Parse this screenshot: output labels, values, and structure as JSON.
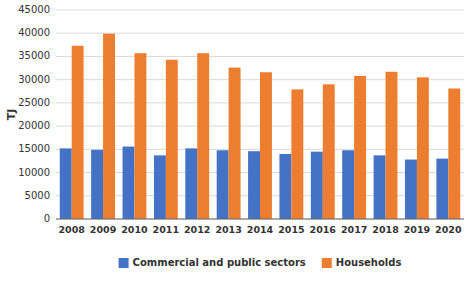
{
  "chart_data": {
    "type": "bar",
    "categories": [
      "2008",
      "2009",
      "2010",
      "2011",
      "2012",
      "2013",
      "2014",
      "2015",
      "2016",
      "2017",
      "2018",
      "2019",
      "2020"
    ],
    "series": [
      {
        "name": "Commercial and public sectors",
        "color": "#4472c4",
        "values": [
          15200,
          14900,
          15600,
          13700,
          15200,
          14800,
          14600,
          14000,
          14500,
          14800,
          13700,
          12800,
          13000
        ]
      },
      {
        "name": "Households",
        "color": "#ed7d31",
        "values": [
          37300,
          39900,
          35700,
          34300,
          35700,
          32600,
          31600,
          27900,
          29000,
          30800,
          31700,
          30500,
          28100
        ]
      }
    ],
    "ylabel": "TJ",
    "ylim": [
      0,
      45000
    ],
    "yticks": [
      0,
      5000,
      10000,
      15000,
      20000,
      25000,
      30000,
      35000,
      40000,
      45000
    ],
    "grid": true,
    "legend": "bottom"
  }
}
